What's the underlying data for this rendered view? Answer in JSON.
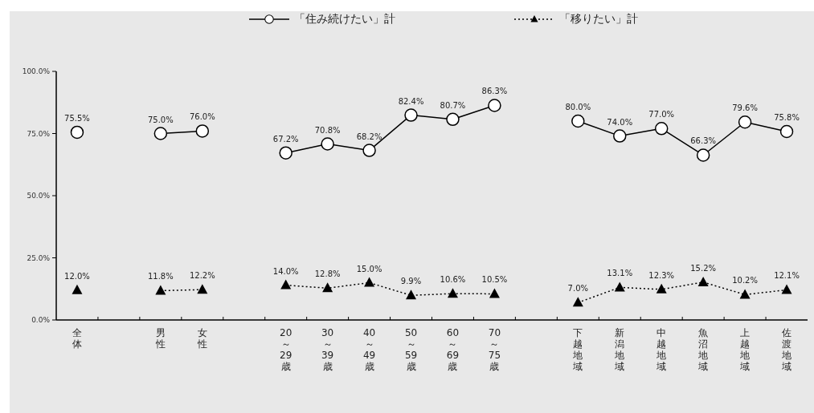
{
  "chart_data": {
    "type": "line",
    "categories": [
      "全体",
      null,
      "男性",
      "女性",
      null,
      "20～29歳",
      "30～39歳",
      "40～49歳",
      "50～59歳",
      "60～69歳",
      "70～75歳",
      null,
      "下越地域",
      "新潟地域",
      "中越地域",
      "魚沼地域",
      "上越地域",
      "佐渡地域"
    ],
    "series": [
      {
        "name": "「住み続けたい」計",
        "color": "#000000",
        "marker": "circle",
        "line_style": "solid",
        "values": [
          75.5,
          null,
          75.0,
          76.0,
          null,
          67.2,
          70.8,
          68.2,
          82.4,
          80.7,
          86.3,
          null,
          80.0,
          74.0,
          77.0,
          66.3,
          79.6,
          75.8
        ],
        "value_labels": [
          "75.5%",
          null,
          "75.0%",
          "76.0%",
          null,
          "67.2%",
          "70.8%",
          "68.2%",
          "82.4%",
          "80.7%",
          "86.3%",
          null,
          "80.0%",
          "74.0%",
          "77.0%",
          "66.3%",
          "79.6%",
          "75.8%"
        ]
      },
      {
        "name": "「移りたい」計",
        "color": "#000000",
        "marker": "triangle",
        "line_style": "dotted",
        "values": [
          12.0,
          null,
          11.8,
          12.2,
          null,
          14.0,
          12.8,
          15.0,
          9.9,
          10.6,
          10.5,
          null,
          7.0,
          13.1,
          12.3,
          15.2,
          10.2,
          12.1
        ],
        "value_labels": [
          "12.0%",
          null,
          "11.8%",
          "12.2%",
          null,
          "14.0%",
          "12.8%",
          "15.0%",
          "9.9%",
          "10.6%",
          "10.5%",
          null,
          "7.0%",
          "13.1%",
          "12.3%",
          "15.2%",
          "10.2%",
          "12.1%"
        ]
      }
    ],
    "ylim": [
      0,
      100
    ],
    "yticks": [
      {
        "value": 0,
        "label": "0.0%"
      },
      {
        "value": 25,
        "label": "25.0%"
      },
      {
        "value": 50,
        "label": "50.0%"
      },
      {
        "value": 75,
        "label": "75.0%"
      },
      {
        "value": 100,
        "label": "100.0%"
      }
    ],
    "legend": "top",
    "grid": false
  }
}
